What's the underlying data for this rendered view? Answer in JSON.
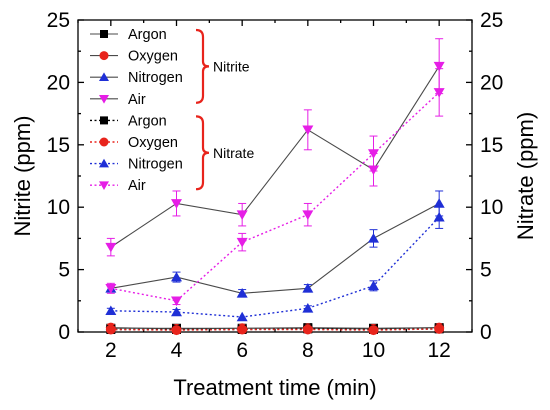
{
  "chart_data": {
    "type": "line",
    "x": [
      2,
      4,
      6,
      8,
      10,
      12
    ],
    "xlabel": "Treatment time (min)",
    "ylabel_left": "Nitrite (ppm)",
    "ylabel_right": "Nitrate (ppm)",
    "xlim": [
      1,
      13
    ],
    "ylim_left": [
      0,
      25
    ],
    "ylim_right": [
      0,
      25
    ],
    "x_ticks": [
      "2",
      "4",
      "6",
      "8",
      "10",
      "12"
    ],
    "y_ticks_left": [
      "0",
      "5",
      "10",
      "15",
      "20",
      "25"
    ],
    "y_ticks_right": [
      "0",
      "5",
      "10",
      "15",
      "20",
      "25"
    ],
    "grid": false,
    "legend_position": "top-left",
    "legend_groups": [
      {
        "label": "Nitrite",
        "series_names": [
          "Argon",
          "Oxygen",
          "Nitrogen",
          "Air"
        ]
      },
      {
        "label": "Nitrate",
        "series_names": [
          "Argon",
          "Oxygen",
          "Nitrogen",
          "Air"
        ]
      }
    ],
    "group_brace_color": "#e8241c",
    "series": [
      {
        "name": "Argon",
        "group": "Nitrite",
        "marker": "square",
        "color": "#000000",
        "line_color": "#4a4a4a",
        "line_style": "solid",
        "values": [
          0.3,
          0.3,
          0.3,
          0.35,
          0.3,
          0.35
        ],
        "errors": [
          0.1,
          0.1,
          0.1,
          0.1,
          0.1,
          0.1
        ]
      },
      {
        "name": "Oxygen",
        "group": "Nitrite",
        "marker": "circle",
        "color": "#e8241c",
        "line_color": "#4a4a4a",
        "line_style": "solid",
        "values": [
          0.35,
          0.25,
          0.3,
          0.3,
          0.25,
          0.35
        ],
        "errors": [
          0.1,
          0.1,
          0.1,
          0.1,
          0.1,
          0.1
        ]
      },
      {
        "name": "Nitrogen",
        "group": "Nitrite",
        "marker": "triangle-up",
        "color": "#1f2fd6",
        "line_color": "#4a4a4a",
        "line_style": "solid",
        "values": [
          3.5,
          4.4,
          3.1,
          3.5,
          7.5,
          10.3
        ],
        "errors": [
          0.3,
          0.4,
          0.3,
          0.3,
          0.7,
          1.0
        ]
      },
      {
        "name": "Air",
        "group": "Nitrite",
        "marker": "triangle-down",
        "color": "#e61ee6",
        "line_color": "#4a4a4a",
        "line_style": "solid",
        "values": [
          6.8,
          10.3,
          9.4,
          16.2,
          13.0,
          21.3
        ],
        "errors": [
          0.7,
          1.0,
          0.9,
          1.6,
          1.3,
          2.2
        ]
      },
      {
        "name": "Argon",
        "group": "Nitrate",
        "marker": "square",
        "color": "#000000",
        "line_color": "#000000",
        "line_style": "dotted",
        "values": [
          0.2,
          0.2,
          0.2,
          0.25,
          0.2,
          0.25
        ],
        "errors": [
          0.05,
          0.05,
          0.05,
          0.05,
          0.05,
          0.05
        ]
      },
      {
        "name": "Oxygen",
        "group": "Nitrate",
        "marker": "circle",
        "color": "#e8241c",
        "line_color": "#e8241c",
        "line_style": "dotted",
        "values": [
          0.2,
          0.15,
          0.2,
          0.2,
          0.15,
          0.25
        ],
        "errors": [
          0.05,
          0.05,
          0.05,
          0.05,
          0.05,
          0.05
        ]
      },
      {
        "name": "Nitrogen",
        "group": "Nitrate",
        "marker": "triangle-up",
        "color": "#1f2fd6",
        "line_color": "#1f2fd6",
        "line_style": "dotted",
        "values": [
          1.7,
          1.6,
          1.2,
          1.9,
          3.7,
          9.2
        ],
        "errors": [
          0.2,
          0.2,
          0.1,
          0.2,
          0.4,
          0.9
        ]
      },
      {
        "name": "Air",
        "group": "Nitrate",
        "marker": "triangle-down",
        "color": "#e61ee6",
        "line_color": "#e61ee6",
        "line_style": "dotted",
        "values": [
          3.5,
          2.5,
          7.2,
          9.4,
          14.3,
          19.2
        ],
        "errors": [
          0.4,
          0.3,
          0.7,
          0.9,
          1.4,
          1.9
        ]
      }
    ]
  }
}
